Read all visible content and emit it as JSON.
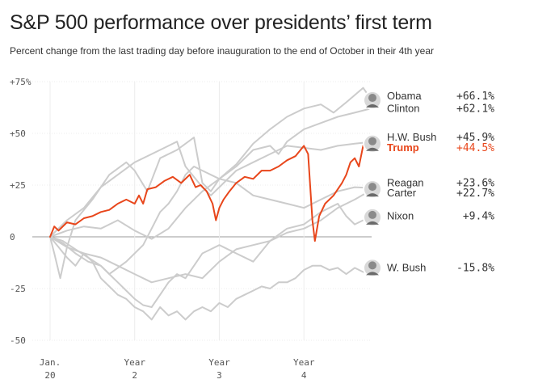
{
  "title": "S&P 500 performance over presidents’ first term",
  "subtitle": "Percent change from the last trading day before inauguration to the end of October in their 4th year",
  "colors": {
    "highlight": "#e8461b",
    "background_series": "#cccccc",
    "axis": "#999999",
    "grid": "#ececec",
    "text": "#555555"
  },
  "chart_data": {
    "type": "line",
    "xlabel": "",
    "ylabel": "",
    "xlim": [
      0,
      3.8
    ],
    "ylim": [
      -52,
      77
    ],
    "y_ticks": [
      {
        "value": 75,
        "label": "+75%"
      },
      {
        "value": 50,
        "label": "+50"
      },
      {
        "value": 25,
        "label": "+25"
      },
      {
        "value": 0,
        "label": "0"
      },
      {
        "value": -25,
        "label": "-25"
      },
      {
        "value": -50,
        "label": "-50"
      }
    ],
    "x_ticks": [
      {
        "value": 0,
        "label1": "Jan.",
        "label2": "20"
      },
      {
        "value": 1,
        "label1": "Year",
        "label2": "2"
      },
      {
        "value": 2,
        "label1": "Year",
        "label2": "3"
      },
      {
        "value": 3,
        "label1": "Year",
        "label2": "4"
      }
    ],
    "series": [
      {
        "name": "Obama",
        "final_label": "+66.1%",
        "icon": "obama-portrait-icon",
        "highlight": false,
        "label_value": 68,
        "points": [
          [
            0,
            0
          ],
          [
            0.05,
            -8
          ],
          [
            0.12,
            -20
          ],
          [
            0.2,
            -5
          ],
          [
            0.3,
            8
          ],
          [
            0.5,
            18
          ],
          [
            0.7,
            30
          ],
          [
            0.9,
            36
          ],
          [
            1.0,
            32
          ],
          [
            1.15,
            22
          ],
          [
            1.3,
            38
          ],
          [
            1.5,
            42
          ],
          [
            1.7,
            48
          ],
          [
            1.8,
            26
          ],
          [
            1.9,
            22
          ],
          [
            2.0,
            28
          ],
          [
            2.2,
            35
          ],
          [
            2.4,
            45
          ],
          [
            2.6,
            52
          ],
          [
            2.8,
            58
          ],
          [
            3.0,
            62
          ],
          [
            3.2,
            64
          ],
          [
            3.35,
            60
          ],
          [
            3.5,
            65
          ],
          [
            3.7,
            72
          ],
          [
            3.8,
            66.1
          ]
        ]
      },
      {
        "name": "Clinton",
        "final_label": "+62.1%",
        "icon": "clinton-portrait-icon",
        "highlight": false,
        "label_value": 62,
        "points": [
          [
            0,
            0
          ],
          [
            0.2,
            3
          ],
          [
            0.4,
            5
          ],
          [
            0.6,
            4
          ],
          [
            0.8,
            8
          ],
          [
            1.0,
            3
          ],
          [
            1.2,
            -1
          ],
          [
            1.4,
            4
          ],
          [
            1.6,
            14
          ],
          [
            1.8,
            22
          ],
          [
            2.0,
            28
          ],
          [
            2.2,
            34
          ],
          [
            2.4,
            42
          ],
          [
            2.6,
            44
          ],
          [
            2.7,
            40
          ],
          [
            2.8,
            46
          ],
          [
            3.0,
            52
          ],
          [
            3.2,
            55
          ],
          [
            3.4,
            58
          ],
          [
            3.6,
            60
          ],
          [
            3.8,
            62.1
          ]
        ]
      },
      {
        "name": "H.W. Bush",
        "final_label": "+45.9%",
        "icon": "hw-bush-portrait-icon",
        "highlight": false,
        "label_value": 48,
        "points": [
          [
            0,
            0
          ],
          [
            0.2,
            8
          ],
          [
            0.4,
            14
          ],
          [
            0.6,
            24
          ],
          [
            0.8,
            30
          ],
          [
            1.0,
            36
          ],
          [
            1.2,
            40
          ],
          [
            1.4,
            44
          ],
          [
            1.5,
            46
          ],
          [
            1.6,
            34
          ],
          [
            1.8,
            24
          ],
          [
            1.9,
            20
          ],
          [
            2.0,
            24
          ],
          [
            2.2,
            32
          ],
          [
            2.4,
            36
          ],
          [
            2.6,
            40
          ],
          [
            2.8,
            44
          ],
          [
            3.0,
            43
          ],
          [
            3.2,
            42
          ],
          [
            3.4,
            44
          ],
          [
            3.6,
            45
          ],
          [
            3.8,
            45.9
          ]
        ]
      },
      {
        "name": "Trump",
        "final_label": "+44.5%",
        "icon": "trump-portrait-icon",
        "highlight": true,
        "label_value": 43,
        "points": [
          [
            0,
            0
          ],
          [
            0.05,
            5
          ],
          [
            0.1,
            3
          ],
          [
            0.2,
            7
          ],
          [
            0.3,
            6
          ],
          [
            0.4,
            9
          ],
          [
            0.5,
            10
          ],
          [
            0.6,
            12
          ],
          [
            0.7,
            13
          ],
          [
            0.8,
            16
          ],
          [
            0.9,
            18
          ],
          [
            1.0,
            16
          ],
          [
            1.05,
            20
          ],
          [
            1.1,
            16
          ],
          [
            1.15,
            23
          ],
          [
            1.25,
            24
          ],
          [
            1.35,
            27
          ],
          [
            1.45,
            29
          ],
          [
            1.55,
            26
          ],
          [
            1.65,
            30
          ],
          [
            1.72,
            24
          ],
          [
            1.78,
            25
          ],
          [
            1.85,
            22
          ],
          [
            1.92,
            16
          ],
          [
            1.96,
            8
          ],
          [
            2.0,
            14
          ],
          [
            2.05,
            18
          ],
          [
            2.12,
            22
          ],
          [
            2.2,
            26
          ],
          [
            2.3,
            29
          ],
          [
            2.4,
            28
          ],
          [
            2.5,
            32
          ],
          [
            2.6,
            32
          ],
          [
            2.7,
            34
          ],
          [
            2.8,
            37
          ],
          [
            2.9,
            39
          ],
          [
            3.0,
            44
          ],
          [
            3.05,
            40
          ],
          [
            3.1,
            8
          ],
          [
            3.13,
            -2
          ],
          [
            3.18,
            10
          ],
          [
            3.25,
            16
          ],
          [
            3.35,
            20
          ],
          [
            3.45,
            26
          ],
          [
            3.5,
            30
          ],
          [
            3.55,
            36
          ],
          [
            3.6,
            38
          ],
          [
            3.65,
            34
          ],
          [
            3.7,
            44
          ],
          [
            3.75,
            48
          ],
          [
            3.8,
            44.5
          ]
        ]
      },
      {
        "name": "Reagan",
        "final_label": "+23.6%",
        "icon": "reagan-portrait-icon",
        "highlight": false,
        "label_value": 26,
        "points": [
          [
            0,
            0
          ],
          [
            0.15,
            -2
          ],
          [
            0.3,
            -6
          ],
          [
            0.45,
            -10
          ],
          [
            0.6,
            -14
          ],
          [
            0.7,
            -18
          ],
          [
            0.8,
            -15
          ],
          [
            0.9,
            -12
          ],
          [
            1.0,
            -8
          ],
          [
            1.1,
            -4
          ],
          [
            1.2,
            4
          ],
          [
            1.3,
            12
          ],
          [
            1.4,
            16
          ],
          [
            1.5,
            22
          ],
          [
            1.6,
            30
          ],
          [
            1.7,
            34
          ],
          [
            1.8,
            32
          ],
          [
            1.9,
            30
          ],
          [
            2.0,
            28
          ],
          [
            2.2,
            26
          ],
          [
            2.4,
            20
          ],
          [
            2.6,
            18
          ],
          [
            2.8,
            16
          ],
          [
            3.0,
            14
          ],
          [
            3.2,
            18
          ],
          [
            3.4,
            22
          ],
          [
            3.6,
            24
          ],
          [
            3.8,
            23.6
          ]
        ]
      },
      {
        "name": "Carter",
        "final_label": "+22.7%",
        "icon": "carter-portrait-icon",
        "highlight": false,
        "label_value": 21,
        "points": [
          [
            0,
            0
          ],
          [
            0.2,
            -5
          ],
          [
            0.4,
            -8
          ],
          [
            0.6,
            -10
          ],
          [
            0.8,
            -14
          ],
          [
            1.0,
            -18
          ],
          [
            1.2,
            -22
          ],
          [
            1.4,
            -20
          ],
          [
            1.6,
            -18
          ],
          [
            1.8,
            -20
          ],
          [
            2.0,
            -12
          ],
          [
            2.2,
            -6
          ],
          [
            2.4,
            -4
          ],
          [
            2.6,
            -2
          ],
          [
            2.8,
            2
          ],
          [
            3.0,
            4
          ],
          [
            3.2,
            8
          ],
          [
            3.4,
            14
          ],
          [
            3.6,
            18
          ],
          [
            3.8,
            22.7
          ]
        ]
      },
      {
        "name": "Nixon",
        "final_label": "+9.4%",
        "icon": "nixon-portrait-icon",
        "highlight": false,
        "label_value": 10,
        "points": [
          [
            0,
            0
          ],
          [
            0.15,
            -3
          ],
          [
            0.3,
            -8
          ],
          [
            0.45,
            -12
          ],
          [
            0.6,
            -14
          ],
          [
            0.7,
            -18
          ],
          [
            0.8,
            -22
          ],
          [
            0.9,
            -26
          ],
          [
            1.0,
            -30
          ],
          [
            1.1,
            -33
          ],
          [
            1.2,
            -34
          ],
          [
            1.3,
            -28
          ],
          [
            1.4,
            -22
          ],
          [
            1.5,
            -18
          ],
          [
            1.6,
            -20
          ],
          [
            1.7,
            -14
          ],
          [
            1.8,
            -8
          ],
          [
            1.9,
            -6
          ],
          [
            2.0,
            -4
          ],
          [
            2.2,
            -8
          ],
          [
            2.4,
            -12
          ],
          [
            2.6,
            -2
          ],
          [
            2.8,
            4
          ],
          [
            3.0,
            6
          ],
          [
            3.2,
            12
          ],
          [
            3.4,
            16
          ],
          [
            3.5,
            10
          ],
          [
            3.6,
            6
          ],
          [
            3.7,
            8
          ],
          [
            3.8,
            9.4
          ]
        ]
      },
      {
        "name": "W. Bush",
        "final_label": "-15.8%",
        "icon": "w-bush-portrait-icon",
        "highlight": false,
        "label_value": -15,
        "points": [
          [
            0,
            0
          ],
          [
            0.1,
            -5
          ],
          [
            0.2,
            -10
          ],
          [
            0.3,
            -14
          ],
          [
            0.4,
            -8
          ],
          [
            0.5,
            -12
          ],
          [
            0.6,
            -20
          ],
          [
            0.7,
            -24
          ],
          [
            0.8,
            -28
          ],
          [
            0.9,
            -30
          ],
          [
            1.0,
            -34
          ],
          [
            1.1,
            -36
          ],
          [
            1.2,
            -40
          ],
          [
            1.3,
            -34
          ],
          [
            1.4,
            -38
          ],
          [
            1.5,
            -36
          ],
          [
            1.6,
            -40
          ],
          [
            1.7,
            -36
          ],
          [
            1.8,
            -34
          ],
          [
            1.9,
            -36
          ],
          [
            2.0,
            -32
          ],
          [
            2.1,
            -34
          ],
          [
            2.2,
            -30
          ],
          [
            2.3,
            -28
          ],
          [
            2.4,
            -26
          ],
          [
            2.5,
            -24
          ],
          [
            2.6,
            -25
          ],
          [
            2.7,
            -22
          ],
          [
            2.8,
            -22
          ],
          [
            2.9,
            -20
          ],
          [
            3.0,
            -16
          ],
          [
            3.1,
            -14
          ],
          [
            3.2,
            -14
          ],
          [
            3.3,
            -16
          ],
          [
            3.4,
            -15
          ],
          [
            3.5,
            -18
          ],
          [
            3.6,
            -15
          ],
          [
            3.7,
            -17
          ],
          [
            3.8,
            -15.8
          ]
        ]
      }
    ]
  }
}
